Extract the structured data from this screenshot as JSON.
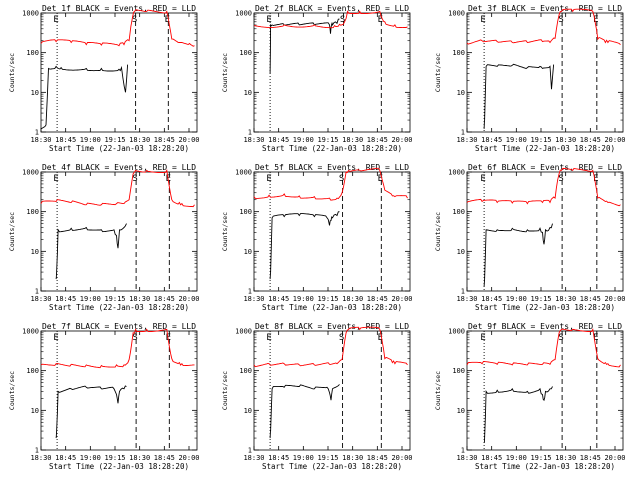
{
  "chart_data": [
    {
      "type": "line",
      "title": "Det 1f BLACK = Events, RED = LLD",
      "xlabel": "Start Time (22-Jan-03 18:28:20)",
      "ylabel": "Counts/sec",
      "yscale": "log",
      "ylim": [
        1,
        1000
      ],
      "yticks": [
        "1",
        "10",
        "100",
        "1000"
      ],
      "xticks": [
        "18:30",
        "18:45",
        "19:00",
        "19:15",
        "18:30",
        "18:45",
        "20:00"
      ],
      "markers": [
        "E",
        "S",
        "E"
      ],
      "series": [
        {
          "color": "#000000",
          "x": [
            0,
            1,
            1.5,
            3,
            4,
            9,
            12,
            15.5,
            16,
            16.8,
            17.2
          ],
          "y": [
            1.2,
            1.5,
            40,
            45,
            42,
            40,
            40,
            38,
            42,
            10,
            50
          ]
        },
        {
          "color": "#ff0000",
          "x": [
            0,
            3,
            6,
            9,
            12,
            15.5,
            16.5,
            17.5,
            18.2,
            18.6,
            21,
            25,
            26,
            27.5,
            28,
            29.5,
            30.5
          ],
          "y": [
            170,
            190,
            180,
            160,
            155,
            150,
            160,
            200,
            800,
            1100,
            1100,
            1100,
            220,
            180,
            180,
            170,
            150
          ]
        }
      ],
      "vlines": [
        {
          "x": 3.2,
          "style": "dotted"
        },
        {
          "x": 18.8,
          "style": "dashed"
        },
        {
          "x": 25.3,
          "style": "dashed"
        }
      ]
    },
    {
      "type": "line",
      "title": "Det 2f BLACK = Events, RED = LLD",
      "xlabel": "Start Time (22-Jan-03 18:28:20)",
      "ylabel": "Counts/sec",
      "yscale": "log",
      "ylim": [
        1,
        1000
      ],
      "yticks": [
        "1",
        "10",
        "100",
        "1000"
      ],
      "xticks": [
        "18:30",
        "18:45",
        "19:00",
        "19:15",
        "18:30",
        "18:45",
        "20:00"
      ],
      "markers": [
        "E",
        "S",
        "E"
      ],
      "series": [
        {
          "color": "#000000",
          "x": [
            3.2,
            3.3,
            3.6,
            6,
            9,
            12,
            15,
            15.2,
            15.4,
            15.6,
            16.5,
            17
          ],
          "y": [
            30,
            500,
            500,
            500,
            500,
            500,
            500,
            300,
            500,
            500,
            550,
            700
          ]
        },
        {
          "color": "#ff0000",
          "x": [
            0,
            6,
            12,
            16,
            17,
            18,
            18.6,
            21,
            25,
            26,
            28,
            30.5
          ],
          "y": [
            480,
            500,
            500,
            480,
            520,
            600,
            1100,
            1100,
            1100,
            600,
            500,
            450
          ]
        }
      ],
      "vlines": [
        {
          "x": 3.2,
          "style": "dotted"
        },
        {
          "x": 17.8,
          "style": "dashed"
        },
        {
          "x": 25.3,
          "style": "dashed"
        }
      ]
    },
    {
      "type": "line",
      "title": "Det 3f BLACK = Events, RED = LLD",
      "xlabel": "Start Time (22-Jan-03 18:28:20)",
      "ylabel": "Counts/sec",
      "yscale": "log",
      "ylim": [
        1,
        1000
      ],
      "yticks": [
        "1",
        "10",
        "100",
        "1000"
      ],
      "xticks": [
        "18:30",
        "18:45",
        "19:00",
        "19:15",
        "18:30",
        "18:45",
        "20:00"
      ],
      "markers": [
        "E",
        "S",
        "E"
      ],
      "series": [
        {
          "color": "#000000",
          "x": [
            3.4,
            3.5,
            3.8,
            6,
            9,
            12,
            14.5,
            15,
            16.5,
            16.8,
            17.2
          ],
          "y": [
            1.2,
            2,
            45,
            45,
            48,
            42,
            45,
            40,
            45,
            12,
            50
          ]
        },
        {
          "color": "#ff0000",
          "x": [
            0,
            3,
            6,
            9,
            12,
            15,
            16.5,
            17.5,
            18.3,
            18.8,
            21,
            25,
            26,
            27.5,
            28,
            30.5
          ],
          "y": [
            175,
            200,
            190,
            180,
            180,
            190,
            180,
            230,
            900,
            1100,
            1100,
            1100,
            220,
            180,
            180,
            160
          ]
        }
      ],
      "vlines": [
        {
          "x": 3.4,
          "style": "dotted"
        },
        {
          "x": 18.9,
          "style": "dashed"
        },
        {
          "x": 25.8,
          "style": "dashed"
        }
      ]
    },
    {
      "type": "line",
      "title": "Det 4f BLACK = Events, RED = LLD",
      "xlabel": "Start Time (22-Jan-03 18:28:20)",
      "ylabel": "Counts/sec",
      "yscale": "log",
      "ylim": [
        1,
        1000
      ],
      "yticks": [
        "1",
        "10",
        "100",
        "1000"
      ],
      "xticks": [
        "18:30",
        "18:45",
        "19:00",
        "19:15",
        "18:30",
        "18:45",
        "20:00"
      ],
      "markers": [
        "E",
        "S",
        "E"
      ],
      "series": [
        {
          "color": "#000000",
          "x": [
            3,
            3.1,
            3.4,
            6,
            9,
            12,
            14.5,
            15,
            15.3,
            15.6,
            16.5,
            17
          ],
          "y": [
            2,
            3,
            35,
            38,
            40,
            35,
            35,
            25,
            12,
            35,
            40,
            50
          ]
        },
        {
          "color": "#ff0000",
          "x": [
            0,
            3,
            6,
            9,
            12,
            15,
            16.5,
            17.5,
            18.3,
            18.8,
            21,
            25,
            26,
            27.5,
            28,
            30.5
          ],
          "y": [
            160,
            180,
            170,
            150,
            150,
            160,
            160,
            200,
            900,
            1100,
            1100,
            1100,
            200,
            170,
            160,
            150
          ]
        }
      ],
      "vlines": [
        {
          "x": 3.2,
          "style": "dotted"
        },
        {
          "x": 18.9,
          "style": "dashed"
        },
        {
          "x": 25.5,
          "style": "dashed"
        }
      ]
    },
    {
      "type": "line",
      "title": "Det 5f BLACK = Events, RED = LLD",
      "xlabel": "Start Time (22-Jan-03 18:28:20)",
      "ylabel": "Counts/sec",
      "yscale": "log",
      "ylim": [
        1,
        1000
      ],
      "yticks": [
        "1",
        "10",
        "100",
        "1000"
      ],
      "xticks": [
        "18:30",
        "18:45",
        "19:00",
        "19:15",
        "18:30",
        "18:45",
        "20:00"
      ],
      "markers": [
        "E",
        "S",
        "E"
      ],
      "series": [
        {
          "color": "#000000",
          "x": [
            3.2,
            3.3,
            3.6,
            6,
            9,
            12,
            14.5,
            15,
            15.3,
            15.6,
            16.5,
            17
          ],
          "y": [
            2,
            3,
            70,
            75,
            80,
            75,
            70,
            45,
            60,
            70,
            80,
            100
          ]
        },
        {
          "color": "#ff0000",
          "x": [
            0,
            3,
            6,
            9,
            12,
            15,
            16.5,
            17.5,
            18.3,
            18.8,
            21,
            25,
            26,
            27.5,
            28,
            30.5
          ],
          "y": [
            240,
            260,
            280,
            250,
            240,
            220,
            220,
            300,
            1000,
            1100,
            1100,
            1100,
            350,
            250,
            240,
            220
          ]
        }
      ],
      "vlines": [
        {
          "x": 3.2,
          "style": "dotted"
        },
        {
          "x": 17.6,
          "style": "dashed"
        },
        {
          "x": 25.3,
          "style": "dashed"
        }
      ]
    },
    {
      "type": "line",
      "title": "Det 6f BLACK = Events, RED = LLD",
      "xlabel": "Start Time (22-Jan-03 18:28:20)",
      "ylabel": "Counts/sec",
      "yscale": "log",
      "ylim": [
        1,
        1000
      ],
      "yticks": [
        "1",
        "10",
        "100",
        "1000"
      ],
      "xticks": [
        "18:30",
        "18:45",
        "19:00",
        "19:15",
        "18:30",
        "18:45",
        "20:00"
      ],
      "markers": [
        "E",
        "S",
        "E"
      ],
      "series": [
        {
          "color": "#000000",
          "x": [
            3.4,
            3.5,
            3.8,
            6,
            9,
            12,
            14.5,
            15,
            15.3,
            15.6,
            16.5,
            17
          ],
          "y": [
            1.3,
            2,
            35,
            35,
            38,
            35,
            38,
            30,
            15,
            35,
            40,
            50
          ]
        },
        {
          "color": "#ff0000",
          "x": [
            0,
            3,
            6,
            9,
            12,
            15,
            16.5,
            17.5,
            18.3,
            18.8,
            21,
            25,
            26,
            27.5,
            28,
            30.5
          ],
          "y": [
            170,
            180,
            170,
            165,
            160,
            170,
            170,
            220,
            900,
            1100,
            1100,
            1100,
            220,
            180,
            170,
            150
          ]
        }
      ],
      "vlines": [
        {
          "x": 3.4,
          "style": "dotted"
        },
        {
          "x": 18.9,
          "style": "dashed"
        },
        {
          "x": 25.8,
          "style": "dashed"
        }
      ]
    },
    {
      "type": "line",
      "title": "Det 7f BLACK = Events, RED = LLD",
      "xlabel": "Start Time (22-Jan-03 18:28:20)",
      "ylabel": "Counts/sec",
      "yscale": "log",
      "ylim": [
        1,
        1000
      ],
      "yticks": [
        "1",
        "10",
        "100",
        "1000"
      ],
      "xticks": [
        "18:30",
        "18:45",
        "19:00",
        "19:15",
        "18:30",
        "18:45",
        "20:00"
      ],
      "markers": [
        "E",
        "S",
        "E"
      ],
      "series": [
        {
          "color": "#000000",
          "x": [
            3,
            3.1,
            3.4,
            6,
            9,
            12,
            14.5,
            15,
            15.3,
            15.6,
            16.5,
            17
          ],
          "y": [
            2,
            3,
            30,
            35,
            38,
            35,
            35,
            25,
            15,
            30,
            35,
            40
          ]
        },
        {
          "color": "#ff0000",
          "x": [
            0,
            3,
            6,
            9,
            12,
            15,
            16.5,
            17.5,
            18.3,
            18.8,
            21,
            25,
            26,
            27.5,
            28,
            30.5
          ],
          "y": [
            140,
            150,
            145,
            140,
            135,
            140,
            140,
            190,
            900,
            1100,
            1100,
            1100,
            200,
            160,
            150,
            140
          ]
        }
      ],
      "vlines": [
        {
          "x": 3.2,
          "style": "dotted"
        },
        {
          "x": 18.9,
          "style": "dashed"
        },
        {
          "x": 25.5,
          "style": "dashed"
        }
      ]
    },
    {
      "type": "line",
      "title": "Det 8f BLACK = Events, RED = LLD",
      "xlabel": "Start Time (22-Jan-03 18:28:20)",
      "ylabel": "Counts/sec",
      "yscale": "log",
      "ylim": [
        1,
        1000
      ],
      "yticks": [
        "1",
        "10",
        "100",
        "1000"
      ],
      "xticks": [
        "18:30",
        "18:45",
        "19:00",
        "19:15",
        "18:30",
        "18:45",
        "20:00"
      ],
      "markers": [
        "E",
        "S",
        "E"
      ],
      "series": [
        {
          "color": "#000000",
          "x": [
            3.2,
            3.3,
            3.6,
            6,
            9,
            12,
            14.5,
            15,
            15.3,
            15.6,
            16.5,
            17
          ],
          "y": [
            2,
            3,
            35,
            38,
            40,
            35,
            38,
            28,
            18,
            35,
            40,
            45
          ]
        },
        {
          "color": "#ff0000",
          "x": [
            0,
            3,
            6,
            9,
            12,
            15,
            16.5,
            17.5,
            18.3,
            18.8,
            21,
            25,
            26,
            27.5,
            28,
            30.5
          ],
          "y": [
            140,
            150,
            150,
            140,
            140,
            145,
            150,
            190,
            900,
            1100,
            1100,
            1100,
            200,
            160,
            150,
            140
          ]
        }
      ],
      "vlines": [
        {
          "x": 3.2,
          "style": "dotted"
        },
        {
          "x": 17.6,
          "style": "dashed"
        },
        {
          "x": 25.3,
          "style": "dashed"
        }
      ]
    },
    {
      "type": "line",
      "title": "Det 9f BLACK = Events, RED = LLD",
      "xlabel": "Start Time (22-Jan-03 18:28:20)",
      "ylabel": "Counts/sec",
      "yscale": "log",
      "ylim": [
        1,
        1000
      ],
      "yticks": [
        "1",
        "10",
        "100",
        "1000"
      ],
      "xticks": [
        "18:30",
        "18:45",
        "19:00",
        "19:15",
        "18:30",
        "18:45",
        "20:00"
      ],
      "markers": [
        "E",
        "S",
        "E"
      ],
      "series": [
        {
          "color": "#000000",
          "x": [
            3.4,
            3.5,
            3.8,
            6,
            9,
            12,
            14.5,
            15,
            15.3,
            15.6,
            16.5,
            17
          ],
          "y": [
            1.5,
            2,
            30,
            32,
            35,
            30,
            35,
            25,
            18,
            30,
            35,
            40
          ]
        },
        {
          "color": "#ff0000",
          "x": [
            0,
            3,
            6,
            9,
            12,
            15,
            16.5,
            17.5,
            18.3,
            18.8,
            21,
            25,
            26,
            27.5,
            28,
            30.5
          ],
          "y": [
            140,
            150,
            145,
            140,
            140,
            145,
            145,
            190,
            900,
            1100,
            1100,
            1100,
            200,
            160,
            150,
            140
          ]
        }
      ],
      "vlines": [
        {
          "x": 3.4,
          "style": "dotted"
        },
        {
          "x": 18.9,
          "style": "dashed"
        },
        {
          "x": 25.8,
          "style": "dashed"
        }
      ]
    }
  ]
}
